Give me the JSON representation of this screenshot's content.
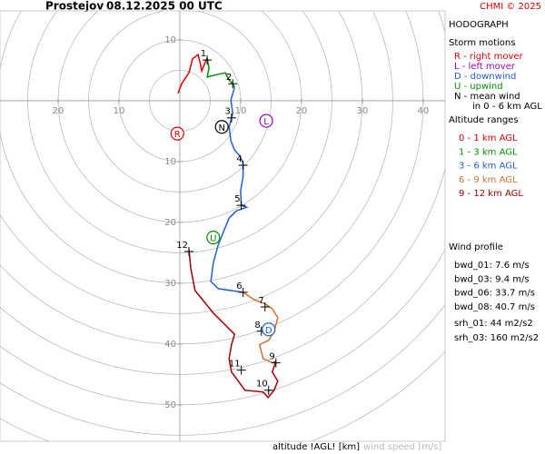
{
  "header": {
    "station": "Prostejov",
    "datetime": "08.12.2025 00 UTC",
    "credit": "CHMI © 2025"
  },
  "panel": {
    "title": "HODOGRAPH",
    "storm_motions_title": "Storm motions",
    "storm_motions": [
      {
        "text": "R - right mover",
        "color": "#e00000"
      },
      {
        "text": "L - left mover",
        "color": "#a000c0"
      },
      {
        "text": "D - downwind",
        "color": "#2060d0"
      },
      {
        "text": "U - upwind",
        "color": "#009000"
      },
      {
        "text": "N - mean wind",
        "color": "#000000"
      }
    ],
    "storm_motions_note": "in 0 - 6 km AGL",
    "altitude_title": "Altitude ranges",
    "wind_profile_title": "Wind profile",
    "wind_profile": [
      "bwd_01: 7.6 m/s",
      "bwd_03: 9.4 m/s",
      "bwd_06: 33.7 m/s",
      "bwd_08: 40.7 m/s"
    ],
    "helicity": [
      "srh_01: 44 m2/s2",
      "srh_03: 160 m2/s2"
    ]
  },
  "footer": {
    "altitude_label": "altitude !AGL! [km]",
    "speed_label": "wind speed [m/s]"
  },
  "chart_data": {
    "type": "hodograph",
    "xlim": [
      -29,
      43
    ],
    "ylim": [
      -15,
      56
    ],
    "xticks": [
      {
        "value": -20,
        "label": "20"
      },
      {
        "value": -10,
        "label": "10"
      },
      10,
      20,
      30,
      40
    ],
    "yticks": [
      {
        "value": -10,
        "label": "10"
      },
      10,
      20,
      30,
      40,
      50
    ],
    "rings": [
      5,
      10,
      15,
      20,
      25,
      30,
      35,
      40,
      45,
      50,
      55,
      60
    ],
    "series": [
      {
        "name": "0 - 1 km AGL",
        "color": "#e00000",
        "x": [
          -0.3,
          0.3,
          1.5,
          2.1,
          3.0,
          3.3,
          3.6,
          4.2,
          4.5
        ],
        "y": [
          -1.2,
          -2.8,
          -4.6,
          -6.9,
          -7.6,
          -6.4,
          -4.9,
          -6.4,
          -7.0
        ]
      },
      {
        "name": "1 - 3 km AGL",
        "color": "#009000",
        "x": [
          4.5,
          4.8,
          4.5,
          6.0,
          7.5,
          8.1,
          8.7,
          9.0
        ],
        "y": [
          -7.0,
          -5.4,
          -3.9,
          -4.3,
          -4.6,
          -3.4,
          -2.8,
          -2.2
        ]
      },
      {
        "name": "3 - 6 km AGL",
        "color": "#2060d0",
        "x": [
          9.0,
          8.4,
          8.7,
          8.1,
          8.4,
          9.0,
          9.9,
          10.4,
          10.4,
          10.0,
          10.1,
          11.0,
          9.3,
          8.1,
          7.2,
          6.3,
          5.5,
          5.1,
          6.3,
          10.4
        ],
        "y": [
          -2.2,
          -0.1,
          2.1,
          4.3,
          6.6,
          8.1,
          9.1,
          10.3,
          12.5,
          14.8,
          17.2,
          17.5,
          18.1,
          19.3,
          21.5,
          23.7,
          26.7,
          29.7,
          30.9,
          31.5
        ]
      },
      {
        "name": "6 - 9 km AGL",
        "color": "#d07030",
        "x": [
          10.4,
          12.2,
          14.0,
          15.2,
          16.1,
          15.5,
          14.6,
          13.1,
          13.7,
          15.2,
          15.8
        ],
        "y": [
          31.5,
          32.7,
          33.4,
          34.2,
          35.7,
          37.9,
          39.4,
          40.1,
          42.4,
          43.1,
          42.8
        ]
      },
      {
        "name": "9 - 12 km AGL",
        "color": "#a00000",
        "x": [
          15.8,
          15.2,
          16.1,
          15.5,
          14.5,
          13.7,
          10.7,
          9.6,
          8.5,
          8.1,
          8.5,
          9.0,
          7.8,
          5.5,
          2.5,
          1.8,
          1.5
        ],
        "y": [
          42.8,
          44.6,
          46.1,
          47.6,
          48.8,
          47.9,
          47.6,
          46.1,
          44.6,
          42.4,
          40.1,
          38.4,
          37.2,
          34.9,
          31.2,
          27.5,
          24.5
        ]
      }
    ],
    "altitude_marks": {
      "labels": [
        1,
        2,
        3,
        4,
        5,
        6,
        7,
        8,
        9,
        10,
        11,
        12
      ],
      "x": [
        4.5,
        8.7,
        8.5,
        10.4,
        10.1,
        10.4,
        14.0,
        13.4,
        15.8,
        14.6,
        10.1,
        1.5
      ],
      "y": [
        -6.7,
        -2.8,
        2.8,
        10.6,
        17.2,
        31.5,
        33.9,
        37.9,
        43.1,
        47.6,
        44.3,
        24.8
      ]
    },
    "storm_motion_marks": {
      "labels": [
        "R",
        "L",
        "D",
        "U",
        "N"
      ],
      "x": [
        -0.4,
        14.2,
        14.6,
        5.5,
        6.9
      ],
      "y": [
        5.4,
        3.3,
        37.6,
        22.5,
        4.3
      ],
      "colors": [
        "#e00000",
        "#a000c0",
        "#2060d0",
        "#009000",
        "#000000"
      ]
    }
  }
}
